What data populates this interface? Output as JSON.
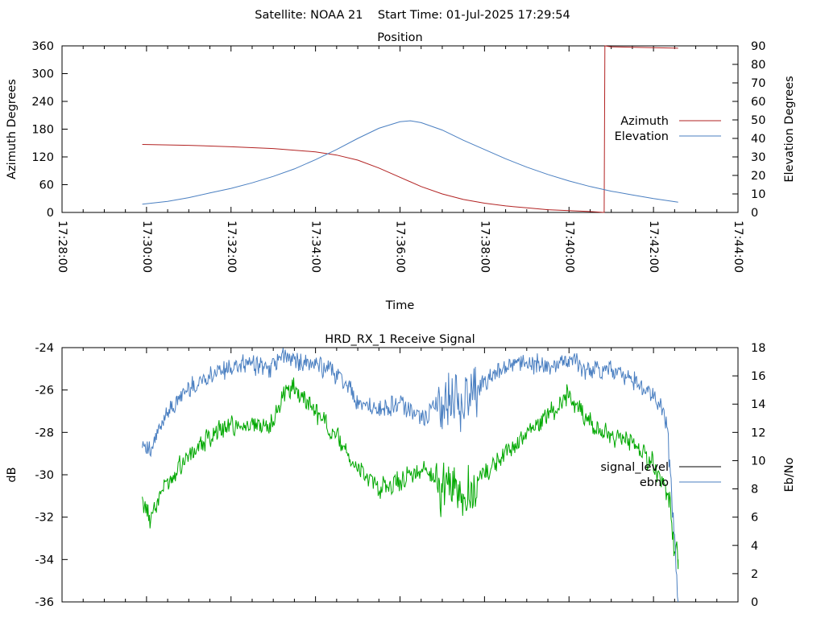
{
  "figure_title": "Satellite: NOAA 21    Start Time: 01-Jul-2025 17:29:54",
  "chart_data": [
    {
      "type": "line",
      "title": "Position",
      "xlabel": "Time",
      "ylabel": "Azimuth Degrees",
      "y2label": "Elevation Degrees",
      "xlim": [
        "17:28:00",
        "17:44:00"
      ],
      "xticks": [
        "17:28:00",
        "17:30:00",
        "17:32:00",
        "17:34:00",
        "17:36:00",
        "17:38:00",
        "17:40:00",
        "17:42:00",
        "17:44:00"
      ],
      "ylim": [
        0,
        360
      ],
      "yticks": [
        0,
        60,
        120,
        180,
        240,
        300,
        360
      ],
      "y2lim": [
        0,
        90
      ],
      "y2ticks": [
        0,
        10,
        20,
        30,
        40,
        50,
        60,
        70,
        80,
        90
      ],
      "legend_position": "right",
      "series": [
        {
          "name": "Azimuth",
          "axis": "y",
          "color": "#b22222",
          "x": [
            "17:29:54",
            "17:31:00",
            "17:32:00",
            "17:33:00",
            "17:34:00",
            "17:34:30",
            "17:35:00",
            "17:35:30",
            "17:36:00",
            "17:36:30",
            "17:37:00",
            "17:37:30",
            "17:38:00",
            "17:38:30",
            "17:39:00",
            "17:39:30",
            "17:40:00",
            "17:40:30",
            "17:40:50",
            "17:40:51",
            "17:41:00",
            "17:42:00",
            "17:42:35"
          ],
          "values": [
            147,
            145,
            142,
            138,
            131,
            124,
            113,
            96,
            76,
            56,
            40,
            28,
            20,
            14,
            10,
            6,
            4,
            2,
            0,
            360,
            358,
            356,
            355
          ]
        },
        {
          "name": "Elevation",
          "axis": "y2",
          "color": "#4a7fc1",
          "x": [
            "17:29:54",
            "17:30:30",
            "17:31:00",
            "17:31:30",
            "17:32:00",
            "17:32:30",
            "17:33:00",
            "17:33:30",
            "17:34:00",
            "17:34:30",
            "17:35:00",
            "17:35:30",
            "17:36:00",
            "17:36:15",
            "17:36:30",
            "17:37:00",
            "17:37:30",
            "17:38:00",
            "17:38:30",
            "17:39:00",
            "17:39:30",
            "17:40:00",
            "17:40:30",
            "17:41:00",
            "17:41:30",
            "17:42:00",
            "17:42:35"
          ],
          "values": [
            4.5,
            6,
            8,
            10.5,
            13,
            16,
            19.5,
            23.5,
            28.5,
            34,
            40,
            45.5,
            49,
            49.5,
            48.5,
            44.5,
            39,
            34,
            29,
            24.5,
            20.5,
            17,
            14,
            11.5,
            9.5,
            7.5,
            5.5
          ]
        }
      ]
    },
    {
      "type": "line",
      "title": "HRD_RX_1 Receive Signal",
      "xlabel": "",
      "ylabel": "dB",
      "y2label": "Eb/No",
      "xlim": [
        "17:28:00",
        "17:44:00"
      ],
      "ylim": [
        -36,
        -24
      ],
      "yticks": [
        -36,
        -34,
        -32,
        -30,
        -28,
        -26,
        -24
      ],
      "y2lim": [
        0,
        18
      ],
      "y2ticks": [
        0,
        2,
        4,
        6,
        8,
        10,
        12,
        14,
        16,
        18
      ],
      "legend_position": "right",
      "series": [
        {
          "name": "signal_level",
          "axis": "y",
          "color": "#00a800",
          "x": [
            "17:29:54",
            "17:30:05",
            "17:30:30",
            "17:31:00",
            "17:31:30",
            "17:32:00",
            "17:32:30",
            "17:33:00",
            "17:33:15",
            "17:33:30",
            "17:34:00",
            "17:34:30",
            "17:35:00",
            "17:35:30",
            "17:36:00",
            "17:36:30",
            "17:37:00",
            "17:37:30",
            "17:38:00",
            "17:38:30",
            "17:39:00",
            "17:39:30",
            "17:40:00",
            "17:40:30",
            "17:41:00",
            "17:41:30",
            "17:42:00",
            "17:42:20",
            "17:42:35"
          ],
          "values": [
            -31.2,
            -32.0,
            -30.2,
            -29.0,
            -28.2,
            -27.7,
            -27.6,
            -27.6,
            -26.0,
            -25.8,
            -27.0,
            -28.2,
            -29.8,
            -30.6,
            -30.3,
            -29.8,
            -30.5,
            -31.0,
            -30.0,
            -29.0,
            -28.0,
            -27.2,
            -26.2,
            -27.5,
            -28.2,
            -28.5,
            -29.5,
            -31.2,
            -34.0
          ]
        },
        {
          "name": "ebno",
          "axis": "y2",
          "color": "#4a7fc1",
          "x": [
            "17:29:54",
            "17:30:05",
            "17:30:30",
            "17:31:00",
            "17:31:30",
            "17:32:00",
            "17:32:30",
            "17:33:00",
            "17:33:15",
            "17:33:30",
            "17:34:00",
            "17:34:30",
            "17:35:00",
            "17:35:30",
            "17:36:00",
            "17:36:30",
            "17:37:00",
            "17:37:30",
            "17:38:00",
            "17:38:30",
            "17:39:00",
            "17:39:30",
            "17:40:00",
            "17:40:30",
            "17:41:00",
            "17:41:30",
            "17:42:00",
            "17:42:20",
            "17:42:35"
          ],
          "values": [
            11.5,
            10.5,
            13.5,
            15.2,
            16.0,
            16.5,
            16.8,
            16.6,
            17.4,
            17.2,
            16.8,
            16.2,
            14.3,
            13.5,
            14.0,
            13.0,
            14.0,
            14.5,
            15.5,
            16.6,
            17.0,
            16.5,
            17.3,
            16.3,
            16.4,
            15.7,
            14.8,
            12.5,
            0
          ]
        }
      ]
    }
  ]
}
